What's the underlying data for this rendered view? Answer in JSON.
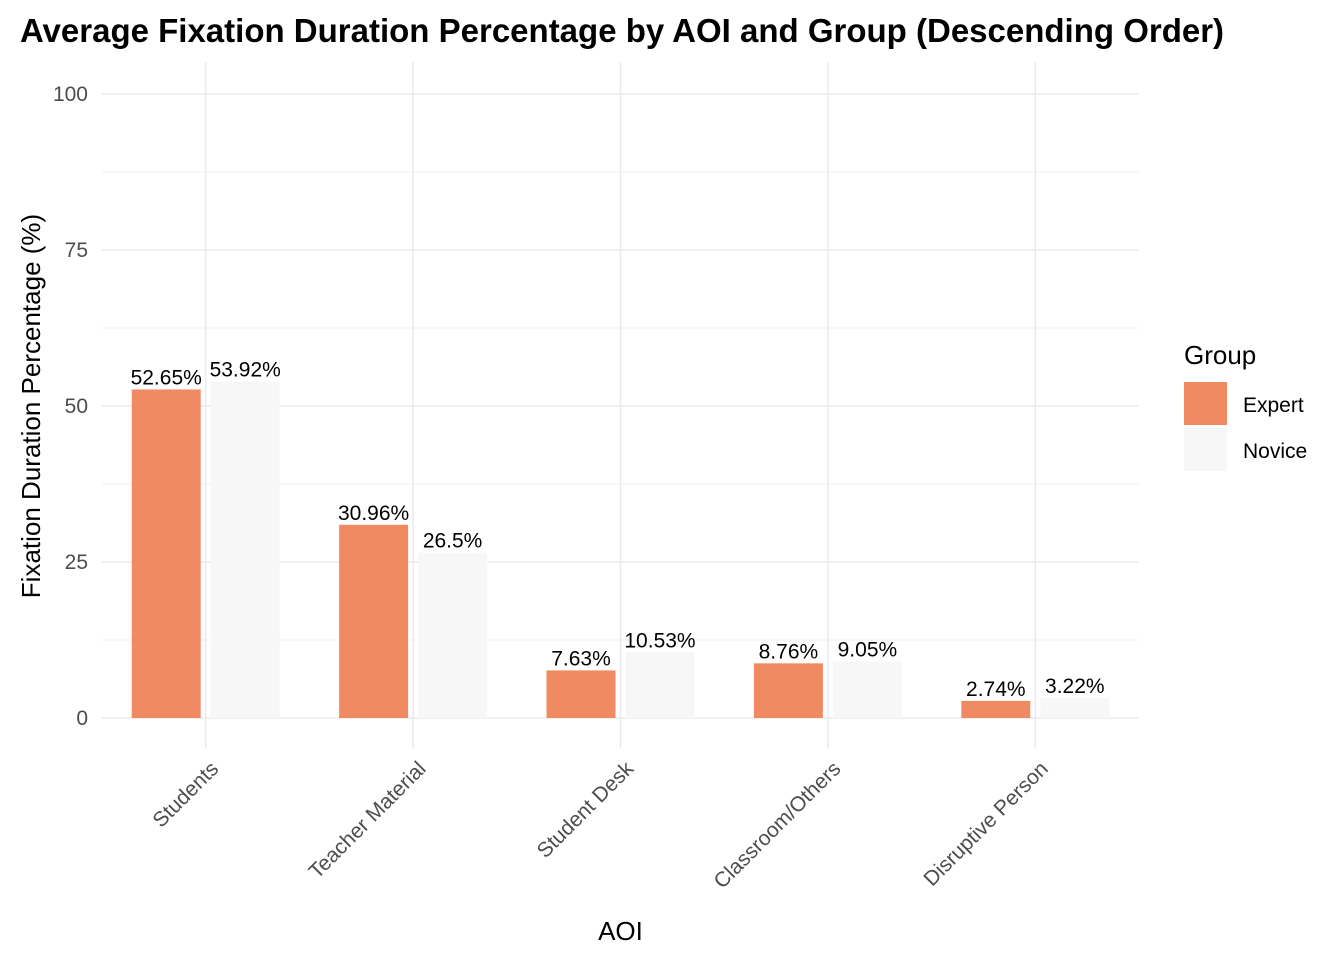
{
  "chart_data": {
    "type": "bar",
    "title": "Average Fixation Duration Percentage by AOI and Group (Descending Order)",
    "xlabel": "AOI",
    "ylabel": "Fixation Duration Percentage (%)",
    "categories": [
      "Students",
      "Teacher Material",
      "Student Desk",
      "Classroom/Others",
      "Disruptive Person"
    ],
    "series": [
      {
        "name": "Expert",
        "color": "#ef8a62",
        "values": [
          52.65,
          30.96,
          7.63,
          8.76,
          2.74
        ],
        "labels": [
          "52.65%",
          "30.96%",
          "7.63%",
          "8.76%",
          "2.74%"
        ]
      },
      {
        "name": "Novice",
        "color": "#f7f7f7",
        "values": [
          53.92,
          26.5,
          10.53,
          9.05,
          3.22
        ],
        "labels": [
          "53.92%",
          "26.5%",
          "10.53%",
          "9.05%",
          "3.22%"
        ]
      }
    ],
    "ylim": [
      0,
      100
    ],
    "yticks": [
      0,
      25,
      50,
      75,
      100
    ],
    "grid": true,
    "legend": {
      "title": "Group",
      "position": "right"
    }
  }
}
